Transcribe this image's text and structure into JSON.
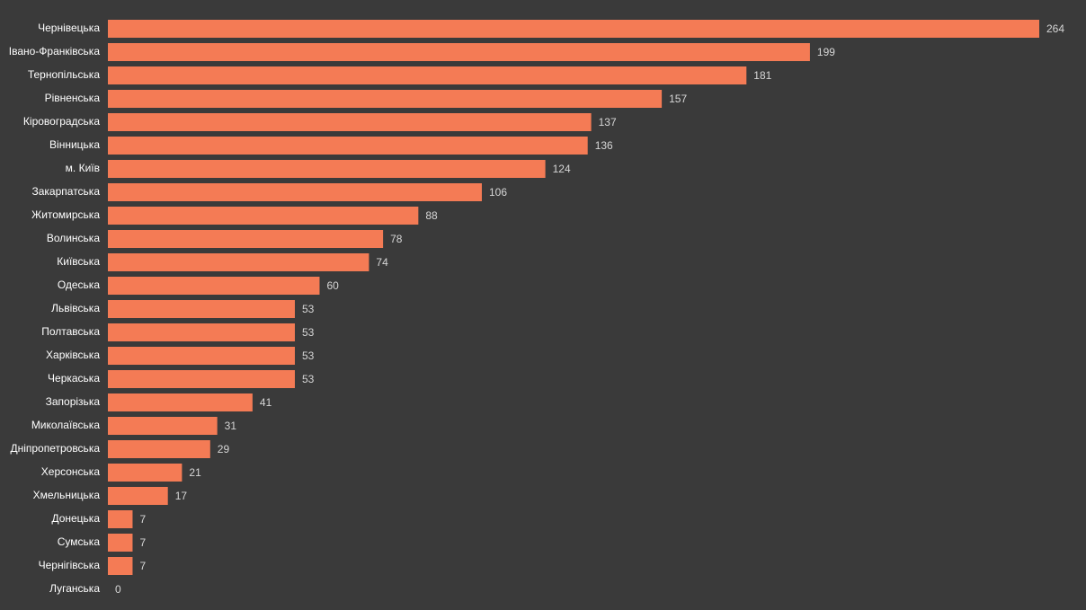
{
  "colors": {
    "background": "#3a3a3a",
    "bar": "#f47b55",
    "category_text": "#ffffff",
    "value_text": "#d6d6d6"
  },
  "chart_data": {
    "type": "bar",
    "orientation": "horizontal",
    "title": "",
    "xlabel": "",
    "ylabel": "",
    "grid": false,
    "xlim": [
      0,
      264
    ],
    "categories": [
      "Чернівецька",
      "Івано-Франківська",
      "Тернопільська",
      "Рівненська",
      "Кіровоградська",
      "Вінницька",
      "м. Київ",
      "Закарпатська",
      "Житомирська",
      "Волинська",
      "Київська",
      "Одеська",
      "Львівська",
      "Полтавська",
      "Харківська",
      "Черкаська",
      "Запорізька",
      "Миколаївська",
      "Дніпропетровська",
      "Херсонська",
      "Хмельницька",
      "Донецька",
      "Сумська",
      "Чернігівська",
      "Луганська"
    ],
    "values": [
      264,
      199,
      181,
      157,
      137,
      136,
      124,
      106,
      88,
      78,
      74,
      60,
      53,
      53,
      53,
      53,
      41,
      31,
      29,
      21,
      17,
      7,
      7,
      7,
      0
    ]
  }
}
